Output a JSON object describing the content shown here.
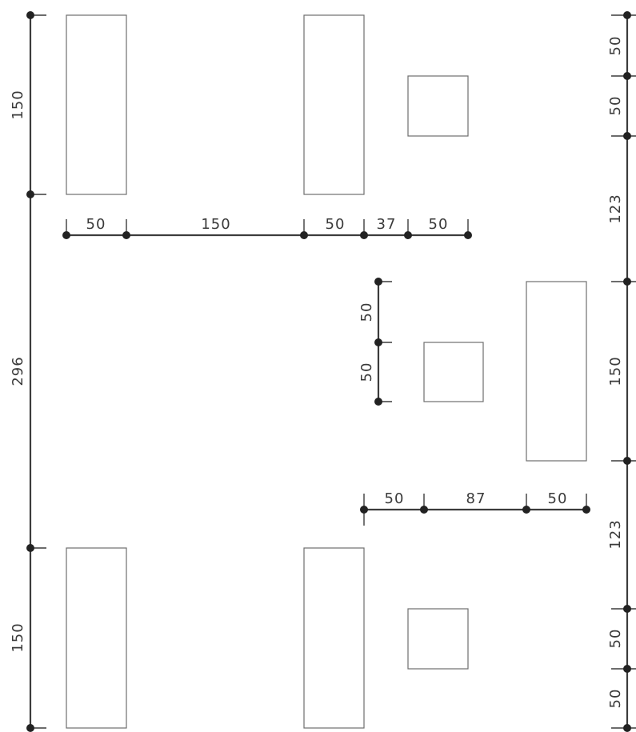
{
  "drawing": {
    "colors": {
      "stroke": "#6e6e6e",
      "dimension": "#3c3c3c",
      "text": "#3a3a3a",
      "background": "#ffffff"
    },
    "dimensions": {
      "left_top": "150",
      "left_middle": "296",
      "left_bottom": "150",
      "row_top": [
        "50",
        "150",
        "50",
        "37",
        "50"
      ],
      "mid_vertical": [
        "50",
        "50"
      ],
      "row_bottom": [
        "50",
        "87",
        "50"
      ],
      "right_vertical": [
        "50",
        "50",
        "123",
        "150",
        "123",
        "50",
        "50"
      ]
    }
  }
}
